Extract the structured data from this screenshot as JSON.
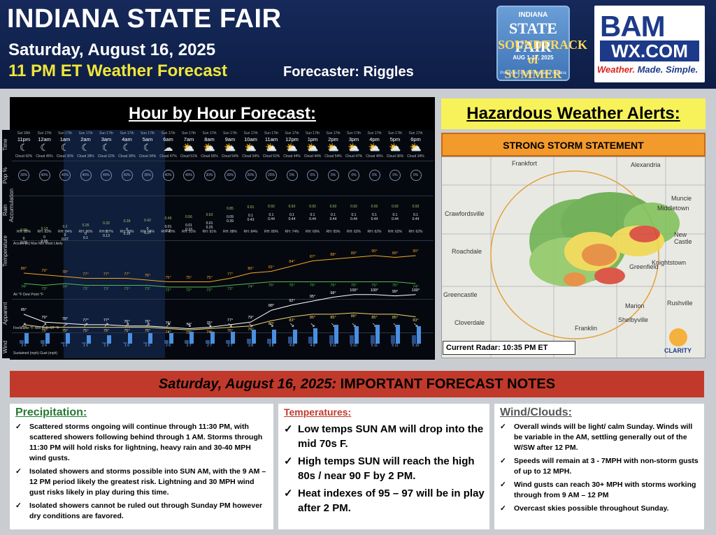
{
  "header": {
    "title": "INDIANA STATE FAIR",
    "date": "Saturday, August 16, 2025",
    "subtitle": "11 PM ET Weather Forecast",
    "forecaster": "Forecaster: Riggles",
    "fair_logo": {
      "line1": "INDIANA",
      "line2": "STATE FAIR",
      "line3": "SOUNDTRACK of SUMMER",
      "line4": "AUG 1-17, 2025",
      "line5": "Presented by Get Prepared Indiana"
    },
    "bam_logo": {
      "line1": "BAM",
      "line2": "WX.COM",
      "tagline_a": "Weather.",
      "tagline_b": " Made. Simple."
    }
  },
  "hourly": {
    "title": "Hour by Hour Forecast:",
    "row_labels": [
      "Time",
      "Pop %",
      "Rain Accumulation",
      "Temperature",
      "Apparent",
      "Wind"
    ],
    "hours": [
      {
        "day": "Sat 16th",
        "hour": "11pm",
        "icon": "☾",
        "cloud": "Cloud 42%",
        "pop": "30%",
        "rain_top": "0.08",
        "rain": "0",
        "rain2": "0.03",
        "rh": "RH: 80%",
        "air": "80°",
        "dew": "74°",
        "feels": "85°",
        "wb": "77°",
        "dir": "↗",
        "sust": "2",
        "gust": "6"
      },
      {
        "day": "Sun 17th",
        "hour": "12am",
        "icon": "☾",
        "cloud": "Cloud 45%",
        "pop": "40%",
        "rain_top": "0.13",
        "rain": "0",
        "rain2": "0.05",
        "rh": "RH: 83%",
        "air": "79°",
        "dew": "73°",
        "feels": "79°",
        "wb": "75°",
        "dir": "↗",
        "sust": "2",
        "gust": "6"
      },
      {
        "day": "Sun 17th",
        "hour": "1am",
        "icon": "☾",
        "cloud": "Cloud 35%",
        "pop": "40%",
        "rain_top": "0.2",
        "rain": "0",
        "rain2": "0.07",
        "rh": "RH: 84%",
        "air": "78°",
        "dew": "74°",
        "feels": "78°",
        "wb": "75°",
        "dir": "↗",
        "sust": "1",
        "gust": "6"
      },
      {
        "day": "Sun 17th",
        "hour": "2am",
        "icon": "☾",
        "cloud": "Cloud 28%",
        "pop": "40%",
        "rain_top": "0.26",
        "rain": "0",
        "rain2": "0.1",
        "rh": "RH: 86%",
        "air": "77°",
        "dew": "73°",
        "feels": "77°",
        "wb": "75°",
        "dir": "↗",
        "sust": "1",
        "gust": "5"
      },
      {
        "day": "Sun 17th",
        "hour": "3am",
        "icon": "☾",
        "cloud": "Cloud 22%",
        "pop": "40%",
        "rain_top": "0.32",
        "rain": "0",
        "rain2": "0.13",
        "rh": "RH: 87%",
        "air": "77°",
        "dew": "73°",
        "feels": "77°",
        "wb": "75°",
        "dir": "↗",
        "sust": "1",
        "gust": "5"
      },
      {
        "day": "Sun 17th",
        "hour": "4am",
        "icon": "☾",
        "cloud": "Cloud 30%",
        "pop": "30%",
        "rain_top": "0.39",
        "rain": "0",
        "rain2": "0.16",
        "rh": "RH: 88%",
        "air": "77°",
        "dew": "73°",
        "feels": "76°",
        "wb": "75°",
        "dir": "↗",
        "sust": "1",
        "gust": "6"
      },
      {
        "day": "Sun 17th",
        "hour": "5am",
        "icon": "☾",
        "cloud": "Cloud 34%",
        "pop": "30%",
        "rain_top": "0.42",
        "rain": "0",
        "rain2": "0.17",
        "rh": "RH: 88%",
        "air": "76°",
        "dew": "73°",
        "feels": "76°",
        "wb": "75°",
        "dir": "↗",
        "sust": "1",
        "gust": "6"
      },
      {
        "day": "Sun 17th",
        "hour": "6am",
        "icon": "☁",
        "cloud": "Cloud 47%",
        "pop": "40%",
        "rain_top": "0.49",
        "rain": "0.01",
        "rain2": "0.2",
        "rh": "RH: 90%",
        "air": "75°",
        "dew": "72°",
        "feels": "75°",
        "wb": "74°",
        "dir": "↗",
        "sust": "2",
        "gust": "6"
      },
      {
        "day": "Sun 17th",
        "hour": "7am",
        "icon": "⛅",
        "cloud": "Cloud 51%",
        "pop": "40%",
        "rain_top": "0.56",
        "rain": "0.01",
        "rain2": "0.23",
        "rh": "RH: 91%",
        "air": "75°",
        "dew": "72°",
        "feels": "74°",
        "wb": "73°",
        "dir": "↘",
        "sust": "2",
        "gust": "7"
      },
      {
        "day": "Sun 17th",
        "hour": "8am",
        "icon": "⛅",
        "cloud": "Cloud 56%",
        "pop": "30%",
        "rain_top": "0.63",
        "rain": "0.01",
        "rain2": "0.25",
        "rh": "RH: 91%",
        "air": "75°",
        "dew": "72°",
        "feels": "75°",
        "wb": "74°",
        "dir": "↘",
        "sust": "2",
        "gust": "7"
      },
      {
        "day": "Sun 17th",
        "hour": "9am",
        "icon": "⛅",
        "cloud": "Cloud 54%",
        "pop": "30%",
        "rain_top": "0.85",
        "rain": "0.09",
        "rain2": "0.39",
        "rh": "RH: 88%",
        "air": "77°",
        "dew": "73°",
        "feels": "77°",
        "wb": "75°",
        "dir": "↘",
        "sust": "2",
        "gust": "7"
      },
      {
        "day": "Sun 17th",
        "hour": "10am",
        "icon": "⛅",
        "cloud": "Cloud 54%",
        "pop": "20%",
        "rain_top": "0.91",
        "rain": "0.1",
        "rain2": "0.43",
        "rh": "RH: 84%",
        "air": "80°",
        "dew": "74°",
        "feels": "79°",
        "wb": "76°",
        "dir": "↘",
        "sust": "3",
        "gust": "8"
      },
      {
        "day": "Sun 17th",
        "hour": "11am",
        "icon": "⛅",
        "cloud": "Cloud 52%",
        "pop": "20%",
        "rain_top": "0.92",
        "rain": "0.1",
        "rain2": "0.44",
        "rh": "RH: 80%",
        "air": "81°",
        "dew": "75°",
        "feels": "88°",
        "wb": "80°",
        "dir": "↘",
        "sust": "3",
        "gust": "8"
      },
      {
        "day": "Sun 17th",
        "hour": "12pm",
        "icon": "⛅",
        "cloud": "Cloud 44%",
        "pop": "0%",
        "rain_top": "0.92",
        "rain": "0.1",
        "rain2": "0.44",
        "rh": "RH: 74%",
        "air": "84°",
        "dew": "75°",
        "feels": "92°",
        "wb": "83°",
        "dir": "↘",
        "sust": "4",
        "gust": "8"
      },
      {
        "day": "Sun 17th",
        "hour": "1pm",
        "icon": "⛅",
        "cloud": "Cloud 44%",
        "pop": "0%",
        "rain_top": "0.92",
        "rain": "0.1",
        "rain2": "0.44",
        "rh": "RH: 69%",
        "air": "87°",
        "dew": "75°",
        "feels": "95°",
        "wb": "85°",
        "dir": "↘",
        "sust": "4",
        "gust": "9"
      },
      {
        "day": "Sun 17th",
        "hour": "2pm",
        "icon": "⛅",
        "cloud": "Cloud 54%",
        "pop": "0%",
        "rain_top": "0.92",
        "rain": "0.1",
        "rain2": "0.44",
        "rh": "RH: 65%",
        "air": "88°",
        "dew": "75°",
        "feels": "98°",
        "wb": "85°",
        "dir": "↘",
        "sust": "5",
        "gust": "11"
      },
      {
        "day": "Sun 17th",
        "hour": "3pm",
        "icon": "⛅",
        "cloud": "Cloud 47%",
        "pop": "0%",
        "rain_top": "0.92",
        "rain": "0.1",
        "rain2": "0.44",
        "rh": "RH: 62%",
        "air": "89°",
        "dew": "75°",
        "feels": "100°",
        "wb": "86°",
        "dir": "↘",
        "sust": "5",
        "gust": "10"
      },
      {
        "day": "Sun 17th",
        "hour": "4pm",
        "icon": "⛅",
        "cloud": "Cloud 45%",
        "pop": "0%",
        "rain_top": "0.92",
        "rain": "0.1",
        "rain2": "0.44",
        "rh": "RH: 62%",
        "air": "90°",
        "dew": "75°",
        "feels": "100°",
        "wb": "85°",
        "dir": "↘",
        "sust": "5",
        "gust": "11"
      },
      {
        "day": "Sun 17th",
        "hour": "5pm",
        "icon": "⛅",
        "cloud": "Cloud 36%",
        "pop": "0%",
        "rain_top": "0.92",
        "rain": "0.1",
        "rain2": "0.44",
        "rh": "RH: 62%",
        "air": "89°",
        "dew": "75°",
        "feels": "99°",
        "wb": "85°",
        "dir": "↘",
        "sust": "5",
        "gust": "11"
      },
      {
        "day": "Sun 17th",
        "hour": "6pm",
        "icon": "⛅",
        "cloud": "Cloud 34%",
        "pop": "0%",
        "rain_top": "0.92",
        "rain": "0.1",
        "rain2": "0.44",
        "rh": "RH: 62%",
        "air": "90°",
        "dew": "74°",
        "feels": "100°",
        "wb": "83°",
        "dir": "↘",
        "sust": "5",
        "gust": "10"
      }
    ],
    "accum_legend": "Accum (in)  Max  Min  Most Likely",
    "temp_legend": "Air °F    Dew Point °F",
    "app_legend": "Feels Like °F    Wet Bulb GT °F",
    "wind_legend": "Sustained (mph)    Gust (mph)"
  },
  "hazards": {
    "title": "Hazardous Weather Alerts:",
    "statement": "STRONG STORM STATEMENT",
    "radar_caption": "Current Radar: 10:35 PM ET",
    "map_labels": [
      "Frankfort",
      "Alexandria",
      "Muncie",
      "Middletown",
      "New Castle",
      "Knightstown",
      "Greenfield",
      "Crawfordsville",
      "Roachdale",
      "Greencastle",
      "Cloverdale",
      "Franklin",
      "Shelbyville",
      "Rushville",
      "Marion"
    ],
    "clarity_logo": "CLARITY"
  },
  "notes": {
    "title_date": "Saturday, August 16, 2025:",
    "title_rest": " IMPORTANT FORECAST NOTES",
    "precip": {
      "heading": "Precipitation:",
      "items": [
        "Scattered storms ongoing will continue through 11:30 PM, with scattered showers following behind through 1 AM. Storms through 11:30 PM will hold risks for lightning, heavy rain and 30-40 MPH wind gusts.",
        "Isolated showers and storms possible into SUN AM, with the 9 AM – 12 PM period likely the greatest risk. Lightning and 30 MPH wind gust risks likely in play during this time.",
        "Isolated showers cannot be ruled out through Sunday PM however dry conditions are favored."
      ]
    },
    "temps": {
      "heading": "Temperatures:",
      "items": [
        "Low temps SUN AM will drop into the mid 70s F.",
        "High temps SUN will reach the high 80s / near 90 F by 2 PM.",
        "Heat indexes of 95 – 97 will be in play after 2 PM."
      ]
    },
    "wind": {
      "heading": "Wind/Clouds:",
      "items": [
        "Overall winds will be light/ calm Sunday. Winds will be variable in the AM, settling generally out of the W/SW after 12 PM.",
        "Speeds will remain at 3 - 7MPH with non-storm gusts of up to 12 MPH.",
        "Wind gusts can reach 30+ MPH with storms working through from 9 AM – 12 PM",
        "Overcast skies possible throughout Sunday."
      ]
    }
  }
}
